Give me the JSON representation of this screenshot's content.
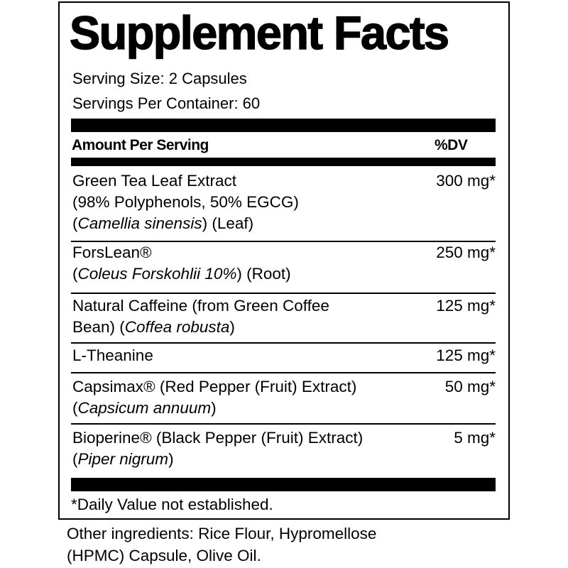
{
  "title": "Supplement Facts",
  "serving_size": "Serving Size: 2 Capsules",
  "servings_per_container": "Servings Per Container: 60",
  "header": {
    "amount_label": "Amount Per Serving",
    "dv_label": "%DV"
  },
  "ingredients": [
    {
      "line1": "Green Tea Leaf Extract",
      "line2": "(98% Polyphenols, 50% EGCG)",
      "line3_pre": "(",
      "line3_italic": "Camellia sinensis",
      "line3_post": ") (Leaf)",
      "amount": "300 mg*"
    },
    {
      "line1": "ForsLean®",
      "line2_pre": "(",
      "line2_italic": "Coleus Forskohlii 10%",
      "line2_post": ") (Root)",
      "amount": "250 mg*"
    },
    {
      "line1": "Natural Caffeine (from Green Coffee",
      "line2_pre": "Bean) (",
      "line2_italic": "Coffea robusta",
      "line2_post": ")",
      "amount": "125 mg*"
    },
    {
      "line1": "L-Theanine",
      "amount": "125 mg*"
    },
    {
      "line1": "Capsimax® (Red Pepper (Fruit) Extract)",
      "line2_pre": "(",
      "line2_italic": "Capsicum annuum",
      "line2_post": ")",
      "amount": "50 mg*"
    },
    {
      "line1": "Bioperine® (Black Pepper (Fruit) Extract)",
      "line2_pre": "(",
      "line2_italic": "Piper nigrum",
      "line2_post": ")",
      "amount": "5 mg*"
    }
  ],
  "footnote": "*Daily Value not established.",
  "other_ingredients": {
    "line1": "Other ingredients: Rice Flour, Hypromellose",
    "line2": "(HPMC) Capsule, Olive Oil."
  }
}
